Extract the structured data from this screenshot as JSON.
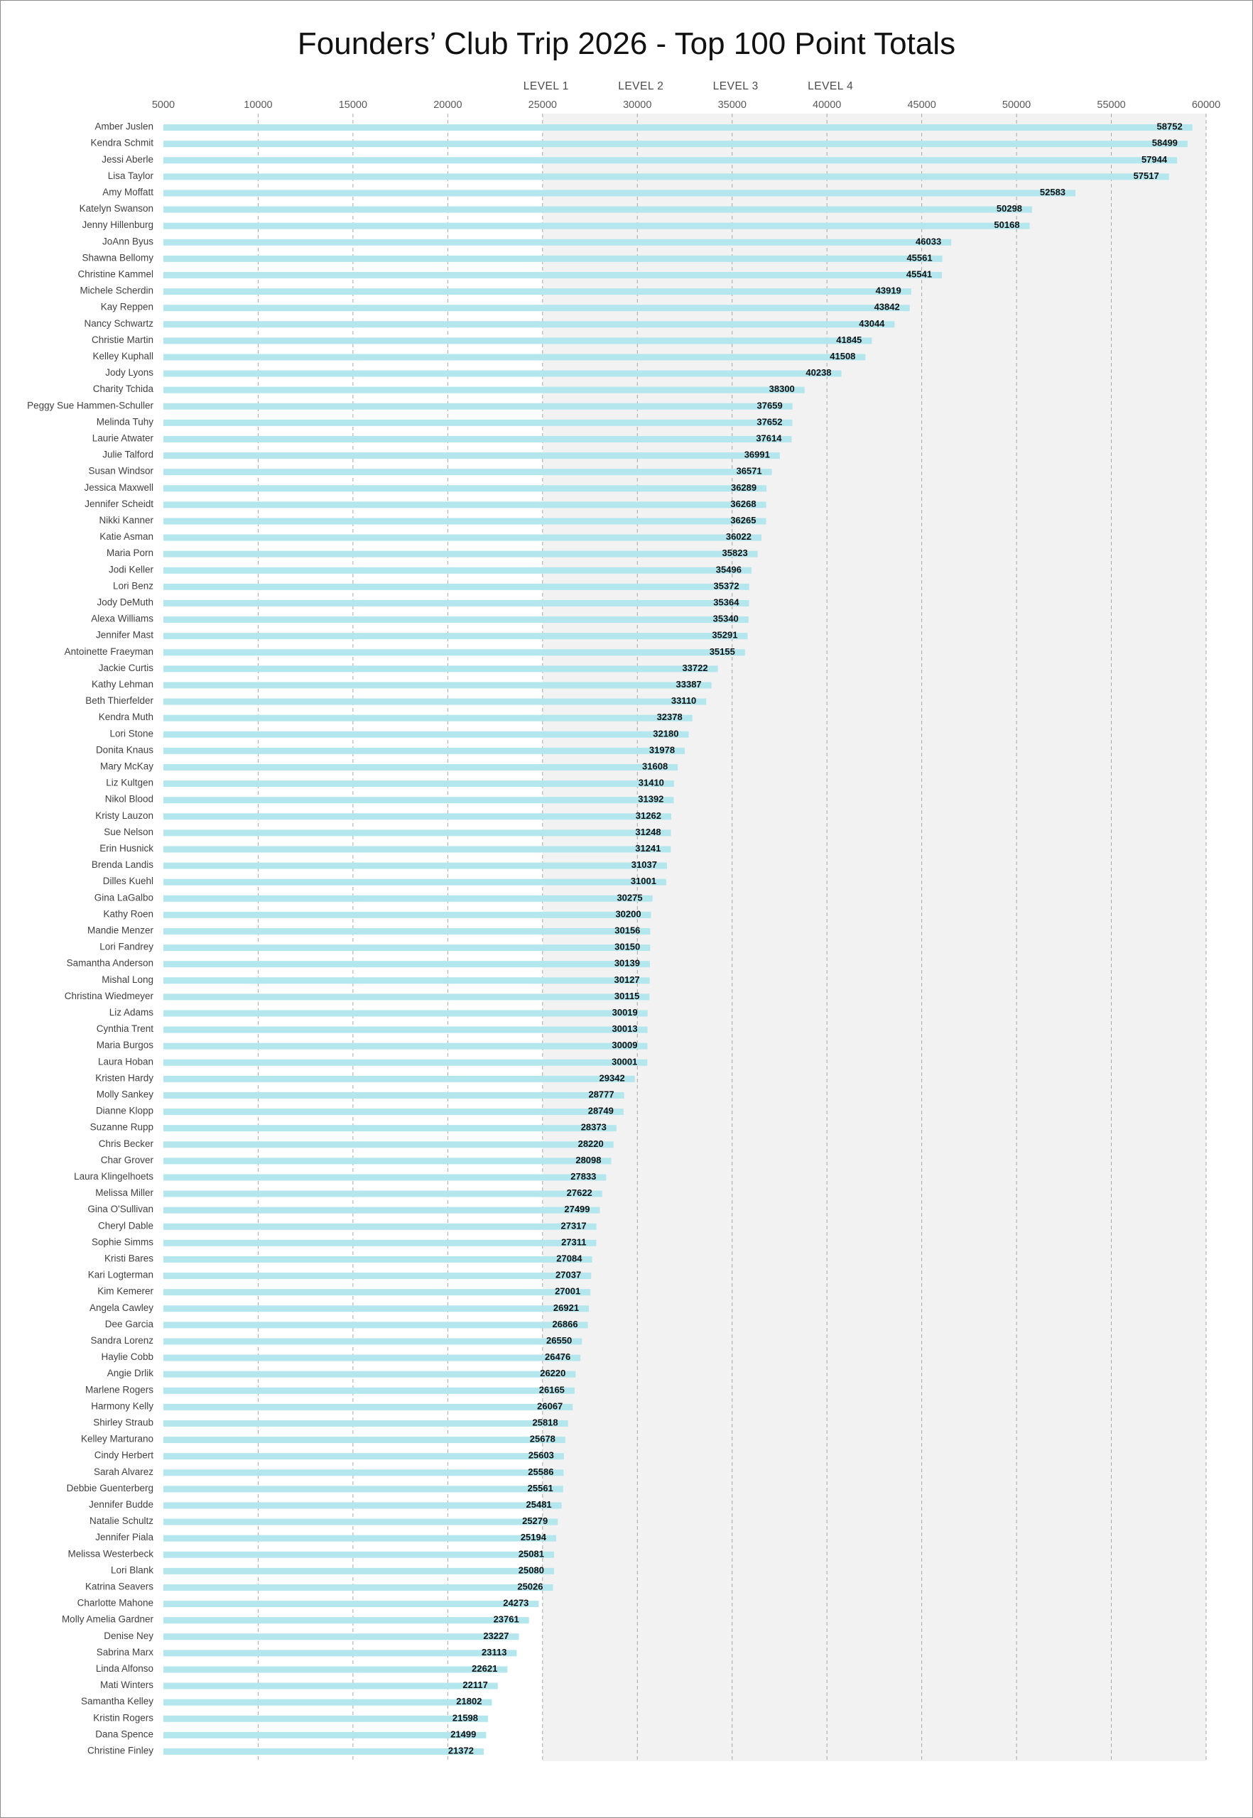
{
  "chart_data": {
    "type": "bar",
    "orientation": "horizontal",
    "title": "Founders’ Club Trip 2026 - Top 100 Point Totals",
    "xlim": [
      5000,
      60000
    ],
    "xticks": [
      5000,
      10000,
      15000,
      20000,
      25000,
      30000,
      35000,
      40000,
      45000,
      50000,
      55000,
      60000
    ],
    "grid": "vertical dashed",
    "colors": {
      "bar": "#b4e6ee",
      "shaded_region": "#f2f2f2",
      "grid": "#a6a6a6",
      "frame": "#8c8c8c"
    },
    "levels": [
      {
        "label": "LEVEL 1",
        "value": 25000
      },
      {
        "label": "LEVEL 2",
        "value": 30000
      },
      {
        "label": "LEVEL 3",
        "value": 35000
      },
      {
        "label": "LEVEL 4",
        "value": 40000
      }
    ],
    "shaded_from": 25000,
    "categories": [
      "Amber Juslen",
      "Kendra Schmit",
      "Jessi Aberle",
      "Lisa Taylor",
      "Amy Moffatt",
      "Katelyn Swanson",
      "Jenny Hillenburg",
      "JoAnn Byus",
      "Shawna Bellomy",
      "Christine Kammel",
      "Michele Scherdin",
      "Kay Reppen",
      "Nancy Schwartz",
      "Christie Martin",
      "Kelley Kuphall",
      "Jody Lyons",
      "Charity Tchida",
      "Peggy Sue Hammen-Schuller",
      "Melinda Tuhy",
      "Laurie Atwater",
      "Julie Talford",
      "Susan Windsor",
      "Jessica Maxwell",
      "Jennifer Scheidt",
      "Nikki Kanner",
      "Katie Asman",
      "Maria Porn",
      "Jodi Keller",
      "Lori Benz",
      "Jody DeMuth",
      "Alexa Williams",
      "Jennifer Mast",
      "Antoinette Fraeyman",
      "Jackie Curtis",
      "Kathy Lehman",
      "Beth Thierfelder",
      "Kendra Muth",
      "Lori Stone",
      "Donita Knaus",
      "Mary McKay",
      "Liz Kultgen",
      "Nikol Blood",
      "Kristy Lauzon",
      "Sue Nelson",
      "Erin Husnick",
      "Brenda Landis",
      "Dilles Kuehl",
      "Gina LaGalbo",
      "Kathy Roen",
      "Mandie Menzer",
      "Lori Fandrey",
      "Samantha Anderson",
      "Mishal Long",
      "Christina Wiedmeyer",
      "Liz Adams",
      "Cynthia Trent",
      "Maria Burgos",
      "Laura Hoban",
      "Kristen Hardy",
      "Molly Sankey",
      "Dianne Klopp",
      "Suzanne Rupp",
      "Chris Becker",
      "Char Grover",
      "Laura Klingelhoets",
      "Melissa Miller",
      "Gina O'Sullivan",
      "Cheryl Dable",
      "Sophie Simms",
      "Kristi Bares",
      "Kari Logterman",
      "Kim Kemerer",
      "Angela Cawley",
      "Dee Garcia",
      "Sandra Lorenz",
      "Haylie Cobb",
      "Angie Drlik",
      "Marlene Rogers",
      "Harmony Kelly",
      "Shirley Straub",
      "Kelley Marturano",
      "Cindy Herbert",
      "Sarah Alvarez",
      "Debbie Guenterberg",
      "Jennifer Budde",
      "Natalie Schultz",
      "Jennifer Piala",
      "Melissa Westerbeck",
      "Lori Blank",
      "Katrina Seavers",
      "Charlotte Mahone",
      "Molly Amelia Gardner",
      "Denise Ney",
      "Sabrina Marx",
      "Linda Alfonso",
      "Mati Winters",
      "Samantha Kelley",
      "Kristin Rogers",
      "Dana Spence",
      "Christine Finley"
    ],
    "values": [
      58752,
      58499,
      57944,
      57517,
      52583,
      50298,
      50168,
      46033,
      45561,
      45541,
      43919,
      43842,
      43044,
      41845,
      41508,
      40238,
      38300,
      37659,
      37652,
      37614,
      36991,
      36571,
      36289,
      36268,
      36265,
      36022,
      35823,
      35496,
      35372,
      35364,
      35340,
      35291,
      35155,
      33722,
      33387,
      33110,
      32378,
      32180,
      31978,
      31608,
      31410,
      31392,
      31262,
      31248,
      31241,
      31037,
      31001,
      30275,
      30200,
      30156,
      30150,
      30139,
      30127,
      30115,
      30019,
      30013,
      30009,
      30001,
      29342,
      28777,
      28749,
      28373,
      28220,
      28098,
      27833,
      27622,
      27499,
      27317,
      27311,
      27084,
      27037,
      27001,
      26921,
      26866,
      26550,
      26476,
      26220,
      26165,
      26067,
      25818,
      25678,
      25603,
      25586,
      25561,
      25481,
      25279,
      25194,
      25081,
      25080,
      25026,
      24273,
      23761,
      23227,
      23113,
      22621,
      22117,
      21802,
      21598,
      21499,
      21372
    ]
  }
}
